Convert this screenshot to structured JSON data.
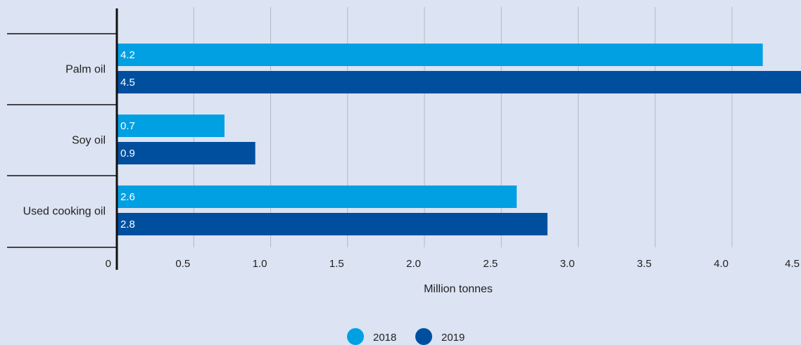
{
  "chart_data": {
    "type": "bar",
    "orientation": "horizontal",
    "categories": [
      "Palm oil",
      "Soy oil",
      "Used cooking oil"
    ],
    "series": [
      {
        "name": "2018",
        "values": [
          4.2,
          0.7,
          2.6
        ],
        "color": "#00a0e3"
      },
      {
        "name": "2019",
        "values": [
          4.5,
          0.9,
          2.8
        ],
        "color": "#004f9f"
      }
    ],
    "x_ticks": [
      "0",
      "0.5",
      "1.0",
      "1.5",
      "2.0",
      "2.5",
      "3.0",
      "3.5",
      "4.0",
      "4.5"
    ],
    "xlim": [
      0,
      4.5
    ],
    "xlabel": "Million tonnes",
    "ylabel": "",
    "grid": true,
    "legend_position": "bottom-center",
    "background": "#dce3f2"
  }
}
